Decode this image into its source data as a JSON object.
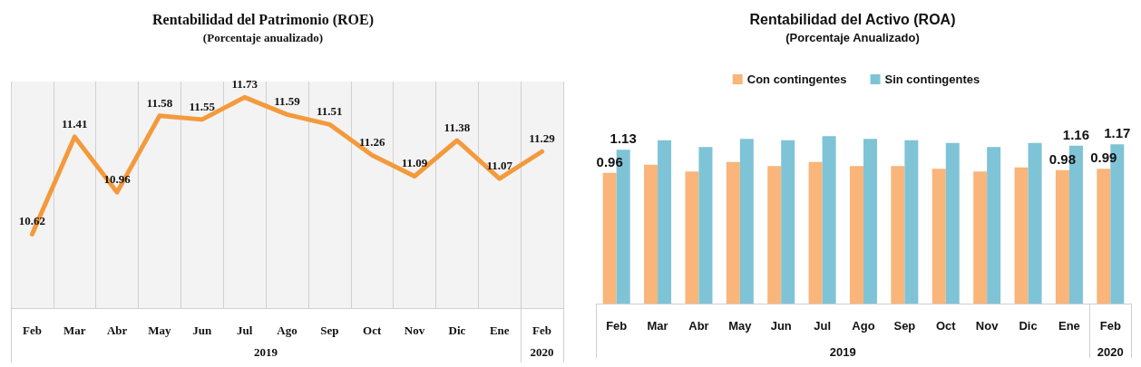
{
  "chart_data": [
    {
      "type": "line",
      "title": "Rentabilidad del Patrimonio (ROE)",
      "subtitle": "(Porcentaje anualizado)",
      "categories": [
        "Feb",
        "Mar",
        "Abr",
        "May",
        "Jun",
        "Jul",
        "Ago",
        "Sep",
        "Oct",
        "Nov",
        "Dic",
        "Ene",
        "Feb"
      ],
      "series": [
        {
          "color": "#f39a3c",
          "values": [
            10.62,
            11.41,
            10.96,
            11.58,
            11.55,
            11.73,
            11.59,
            11.51,
            11.26,
            11.09,
            11.38,
            11.07,
            11.29
          ]
        }
      ],
      "data_labels": true,
      "marker": "none",
      "line_style": "solid",
      "grid": "x",
      "legend": false,
      "tick_labels": "x",
      "annotations": [
        "2019",
        "2020"
      ]
    },
    {
      "type": "bar",
      "title": "Rentabilidad del Activo (ROA)",
      "subtitle": "(Porcentaje Anualizado)",
      "categories": [
        "Feb",
        "Mar",
        "Abr",
        "May",
        "Jun",
        "Jul",
        "Ago",
        "Sep",
        "Oct",
        "Nov",
        "Dic",
        "Ene",
        "Feb"
      ],
      "series": [
        {
          "name": "Con contingentes",
          "color": "#f9b57a",
          "values": [
            0.96,
            1.02,
            0.97,
            1.04,
            1.01,
            1.04,
            1.01,
            1.01,
            0.99,
            0.97,
            1.0,
            0.98,
            0.99
          ],
          "value_labels": [
            "0.96",
            null,
            null,
            null,
            null,
            null,
            null,
            null,
            null,
            null,
            null,
            "0.98",
            "0.99"
          ]
        },
        {
          "name": "Sin contingentes",
          "color": "#7fc3d6",
          "values": [
            1.13,
            1.2,
            1.15,
            1.21,
            1.2,
            1.23,
            1.21,
            1.2,
            1.18,
            1.15,
            1.18,
            1.16,
            1.17
          ],
          "value_labels": [
            "1.13",
            null,
            null,
            null,
            null,
            null,
            null,
            null,
            null,
            null,
            null,
            "1.16",
            "1.17"
          ]
        }
      ],
      "legend": "top",
      "grid": false,
      "tick_labels": "x",
      "annotations": [
        "2019",
        "2020"
      ]
    }
  ]
}
